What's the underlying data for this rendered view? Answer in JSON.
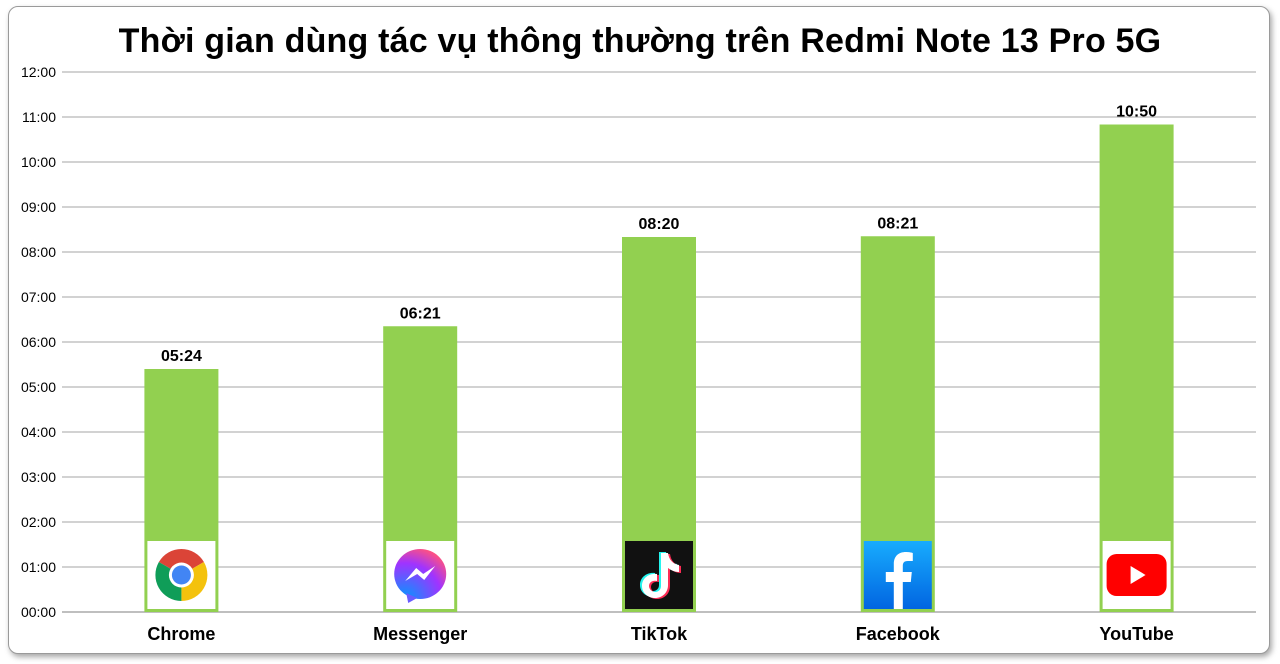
{
  "chart_data": {
    "type": "bar",
    "title": "Thời gian dùng tác vụ thông thường trên Redmi Note 13 Pro 5G",
    "categories": [
      "Chrome",
      "Messenger",
      "TikTok",
      "Facebook",
      "YouTube"
    ],
    "values": [
      5.4,
      6.35,
      8.3333,
      8.35,
      10.8333
    ],
    "value_labels": [
      "05:24",
      "06:21",
      "08:20",
      "08:21",
      "10:50"
    ],
    "category_icons": [
      "chrome-icon",
      "messenger-icon",
      "tiktok-icon",
      "facebook-icon",
      "youtube-icon"
    ],
    "y_ticks": [
      "00:00",
      "01:00",
      "02:00",
      "03:00",
      "04:00",
      "05:00",
      "06:00",
      "07:00",
      "08:00",
      "09:00",
      "10:00",
      "11:00",
      "12:00"
    ],
    "ylim": [
      0,
      12
    ],
    "grid": true,
    "xlabel": "",
    "ylabel": "",
    "colors": {
      "bar": "#92d050",
      "grid": "#a6a6a6",
      "axis": "#7f7f7f"
    }
  }
}
